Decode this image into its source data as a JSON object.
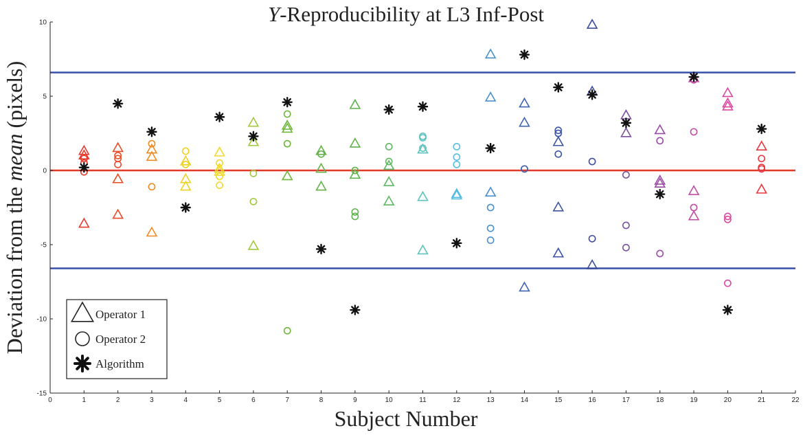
{
  "chart_data": {
    "type": "scatter",
    "title_italic": "Y",
    "title_rest": "-Reproducibility at L3 Inf-Post",
    "xlabel": "Subject Number",
    "ylabel_pre": "Deviation from the ",
    "ylabel_italic": "mean",
    "ylabel_post": " (pixels)",
    "xlim": [
      0,
      22
    ],
    "ylim": [
      -15,
      10
    ],
    "xticks": [
      0,
      1,
      2,
      3,
      4,
      5,
      6,
      7,
      8,
      9,
      10,
      11,
      12,
      13,
      14,
      15,
      16,
      17,
      18,
      19,
      20,
      21,
      22
    ],
    "yticks": [
      -15,
      -10,
      -5,
      0,
      5,
      10
    ],
    "reference_lines": [
      {
        "y": 6.6,
        "color": "#3550a6"
      },
      {
        "y": -6.6,
        "color": "#3550a6"
      },
      {
        "y": 0,
        "color": "#e2382b"
      }
    ],
    "subject_colors": {
      "1": "#e8382b",
      "2": "#ec4a25",
      "3": "#f08a22",
      "4": "#f0d020",
      "5": "#f0d92a",
      "6": "#9fc83a",
      "7": "#6fb63a",
      "8": "#62b248",
      "9": "#5db24a",
      "10": "#5cb860",
      "11": "#5dc1bd",
      "12": "#55bde0",
      "13": "#4a8fce",
      "14": "#3f63b2",
      "15": "#3a55a8",
      "16": "#3f4c9f",
      "17": "#7a4ea2",
      "18": "#9a4aa6",
      "19": "#c24aa6",
      "20": "#dd47a0",
      "21": "#e8373f"
    },
    "series": [
      {
        "name": "Operator 1",
        "marker": "triangle",
        "points": [
          [
            1,
            1.3
          ],
          [
            1,
            1.0
          ],
          [
            1,
            -3.6
          ],
          [
            2,
            1.5
          ],
          [
            2,
            -0.6
          ],
          [
            2,
            -3.0
          ],
          [
            3,
            1.4
          ],
          [
            3,
            0.9
          ],
          [
            3,
            -4.2
          ],
          [
            4,
            0.6
          ],
          [
            4,
            -0.6
          ],
          [
            4,
            -1.1
          ],
          [
            5,
            1.2
          ],
          [
            5,
            0.1
          ],
          [
            5,
            -0.1
          ],
          [
            6,
            3.2
          ],
          [
            6,
            1.9
          ],
          [
            6,
            -5.1
          ],
          [
            7,
            3.0
          ],
          [
            7,
            2.8
          ],
          [
            7,
            -0.4
          ],
          [
            8,
            1.3
          ],
          [
            8,
            0.1
          ],
          [
            8,
            -1.1
          ],
          [
            9,
            4.4
          ],
          [
            9,
            1.8
          ],
          [
            9,
            -0.3
          ],
          [
            10,
            0.3
          ],
          [
            10,
            -0.8
          ],
          [
            10,
            -2.1
          ],
          [
            11,
            1.4
          ],
          [
            11,
            -1.8
          ],
          [
            11,
            -5.4
          ],
          [
            12,
            -1.6
          ],
          [
            12,
            -1.7
          ],
          [
            13,
            7.8
          ],
          [
            13,
            4.9
          ],
          [
            13,
            -1.5
          ],
          [
            14,
            4.5
          ],
          [
            14,
            3.2
          ],
          [
            14,
            -7.9
          ],
          [
            15,
            1.9
          ],
          [
            15,
            -2.5
          ],
          [
            15,
            -5.6
          ],
          [
            16,
            9.8
          ],
          [
            16,
            5.3
          ],
          [
            16,
            -6.4
          ],
          [
            17,
            3.7
          ],
          [
            17,
            2.5
          ],
          [
            18,
            2.7
          ],
          [
            18,
            -0.7
          ],
          [
            18,
            -0.9
          ],
          [
            19,
            6.2
          ],
          [
            19,
            -1.4
          ],
          [
            19,
            -3.1
          ],
          [
            20,
            5.2
          ],
          [
            20,
            4.5
          ],
          [
            20,
            4.3
          ],
          [
            21,
            1.6
          ],
          [
            21,
            -1.3
          ]
        ]
      },
      {
        "name": "Operator 2",
        "marker": "circle",
        "points": [
          [
            1,
            0.8
          ],
          [
            1,
            0.5
          ],
          [
            1,
            -0.1
          ],
          [
            2,
            1.0
          ],
          [
            2,
            0.8
          ],
          [
            2,
            0.4
          ],
          [
            3,
            1.8
          ],
          [
            3,
            -1.1
          ],
          [
            4,
            1.3
          ],
          [
            4,
            0.4
          ],
          [
            5,
            0.5
          ],
          [
            5,
            -0.4
          ],
          [
            5,
            -1.0
          ],
          [
            6,
            -0.2
          ],
          [
            6,
            -2.1
          ],
          [
            7,
            3.8
          ],
          [
            7,
            1.8
          ],
          [
            7,
            -10.8
          ],
          [
            8,
            1.1
          ],
          [
            9,
            0.0
          ],
          [
            9,
            -2.8
          ],
          [
            9,
            -3.1
          ],
          [
            10,
            1.6
          ],
          [
            10,
            0.6
          ],
          [
            11,
            2.3
          ],
          [
            11,
            2.2
          ],
          [
            11,
            1.5
          ],
          [
            12,
            1.6
          ],
          [
            12,
            0.9
          ],
          [
            12,
            0.4
          ],
          [
            13,
            -2.5
          ],
          [
            13,
            -3.9
          ],
          [
            13,
            -4.7
          ],
          [
            14,
            0.1
          ],
          [
            14,
            0.1
          ],
          [
            15,
            2.7
          ],
          [
            15,
            2.5
          ],
          [
            15,
            1.1
          ],
          [
            16,
            0.6
          ],
          [
            16,
            -4.6
          ],
          [
            17,
            -0.3
          ],
          [
            17,
            -3.7
          ],
          [
            17,
            -5.2
          ],
          [
            18,
            2.0
          ],
          [
            18,
            -5.6
          ],
          [
            19,
            6.1
          ],
          [
            19,
            2.6
          ],
          [
            19,
            -2.5
          ],
          [
            20,
            -3.1
          ],
          [
            20,
            -3.3
          ],
          [
            20,
            -7.6
          ],
          [
            21,
            0.8
          ],
          [
            21,
            0.2
          ],
          [
            21,
            0.1
          ]
        ]
      },
      {
        "name": "Algorithm",
        "marker": "asterisk",
        "points": [
          [
            1,
            0.2
          ],
          [
            2,
            4.5
          ],
          [
            3,
            2.6
          ],
          [
            4,
            -2.5
          ],
          [
            5,
            3.6
          ],
          [
            6,
            2.3
          ],
          [
            7,
            4.6
          ],
          [
            8,
            -5.3
          ],
          [
            9,
            -9.4
          ],
          [
            10,
            4.1
          ],
          [
            11,
            4.3
          ],
          [
            12,
            -4.9
          ],
          [
            13,
            1.5
          ],
          [
            14,
            7.8
          ],
          [
            15,
            5.6
          ],
          [
            16,
            5.1
          ],
          [
            17,
            3.2
          ],
          [
            18,
            -1.6
          ],
          [
            19,
            6.3
          ],
          [
            20,
            -9.4
          ],
          [
            21,
            2.8
          ]
        ]
      }
    ],
    "legend": {
      "position": "bottom-left",
      "entries": [
        {
          "label": "Operator 1",
          "marker": "triangle"
        },
        {
          "label": "Operator 2",
          "marker": "circle"
        },
        {
          "label": "Algorithm",
          "marker": "asterisk"
        }
      ]
    },
    "grid": false
  }
}
